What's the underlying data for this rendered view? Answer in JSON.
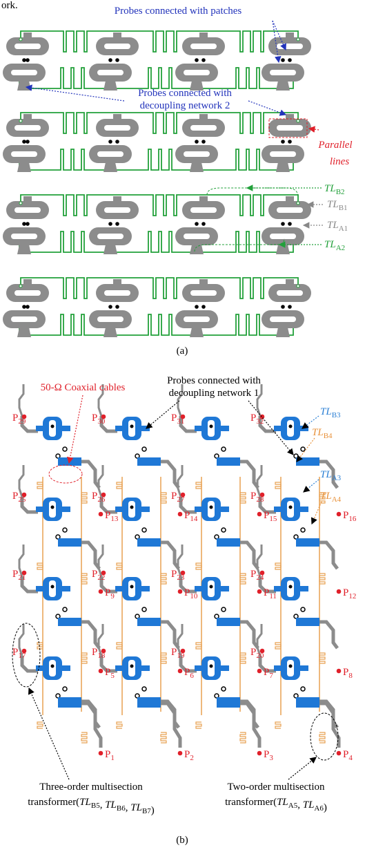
{
  "fragment": "ork.",
  "panel_a": {
    "probes_patches": "Probes connected with patches",
    "probes_dn2": [
      "Probes connected with",
      "decoupling network 2"
    ],
    "parallel_lines": [
      "Parallel",
      "lines"
    ],
    "tl_labels": [
      {
        "main": "TL",
        "sub": "B2",
        "color": "#22a03a"
      },
      {
        "main": "TL",
        "sub": "B1",
        "color": "#888888"
      },
      {
        "main": "TL",
        "sub": "A1",
        "color": "#888888"
      },
      {
        "main": "TL",
        "sub": "A2",
        "color": "#22a03a"
      }
    ],
    "caption": "(a)"
  },
  "panel_b": {
    "coax": "50-Ω Coaxial cables",
    "probes_dn1": [
      "Probes connected with",
      "decoupling network 1"
    ],
    "ports": [
      {
        "main": "P",
        "sub": "1"
      },
      {
        "main": "P",
        "sub": "2"
      },
      {
        "main": "P",
        "sub": "3"
      },
      {
        "main": "P",
        "sub": "4"
      },
      {
        "main": "P",
        "sub": "5"
      },
      {
        "main": "P",
        "sub": "6"
      },
      {
        "main": "P",
        "sub": "7"
      },
      {
        "main": "P",
        "sub": "8"
      },
      {
        "main": "P",
        "sub": "9"
      },
      {
        "main": "P",
        "sub": "10"
      },
      {
        "main": "P",
        "sub": "11"
      },
      {
        "main": "P",
        "sub": "12"
      },
      {
        "main": "P",
        "sub": "13"
      },
      {
        "main": "P",
        "sub": "14"
      },
      {
        "main": "P",
        "sub": "15"
      },
      {
        "main": "P",
        "sub": "16"
      },
      {
        "main": "P",
        "sub": "17"
      },
      {
        "main": "P",
        "sub": "18"
      },
      {
        "main": "P",
        "sub": "19"
      },
      {
        "main": "P",
        "sub": "20"
      },
      {
        "main": "P",
        "sub": "21"
      },
      {
        "main": "P",
        "sub": "22"
      },
      {
        "main": "P",
        "sub": "23"
      },
      {
        "main": "P",
        "sub": "24"
      },
      {
        "main": "P",
        "sub": "25"
      },
      {
        "main": "P",
        "sub": "26"
      },
      {
        "main": "P",
        "sub": "27"
      },
      {
        "main": "P",
        "sub": "28"
      },
      {
        "main": "P",
        "sub": "29"
      },
      {
        "main": "P",
        "sub": "30"
      },
      {
        "main": "P",
        "sub": "31"
      },
      {
        "main": "P",
        "sub": "32"
      }
    ],
    "tl_labels": [
      {
        "main": "TL",
        "sub": "B3",
        "color": "#2a7fd4"
      },
      {
        "main": "TL",
        "sub": "B4",
        "color": "#e8913a"
      },
      {
        "main": "TL",
        "sub": "A3",
        "color": "#2a7fd4"
      },
      {
        "main": "TL",
        "sub": "A4",
        "color": "#e8913a"
      }
    ],
    "three_order": {
      "line1": "Three-order multisection",
      "line2": [
        "transformer(",
        {
          "main": "TL",
          "sub": "B5"
        },
        ", ",
        {
          "main": "TL",
          "sub": "B6"
        },
        ", ",
        {
          "main": "TL",
          "sub": "B7"
        },
        ")"
      ]
    },
    "two_order": {
      "line1": "Two-order multisection",
      "line2": [
        "transformer(",
        {
          "main": "TL",
          "sub": "A5"
        },
        ", ",
        {
          "main": "TL",
          "sub": "A6"
        },
        ")"
      ]
    },
    "caption": "(b)"
  }
}
